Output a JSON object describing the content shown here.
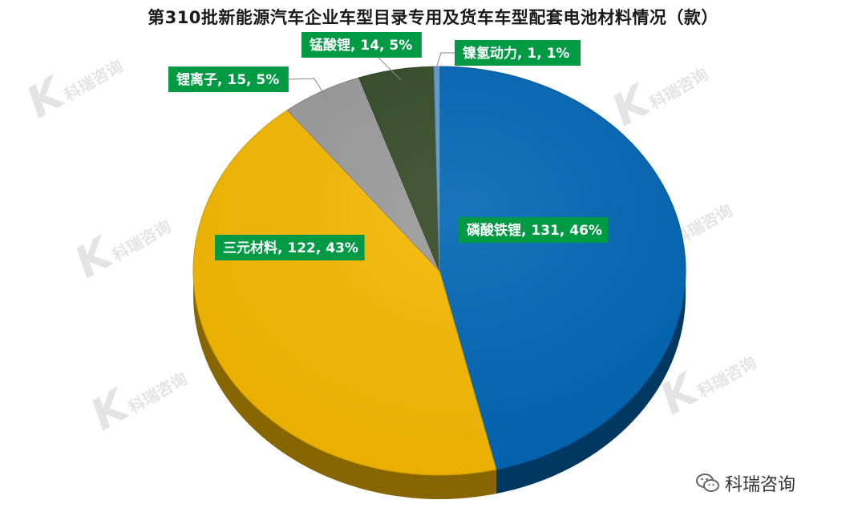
{
  "chart_data": {
    "type": "pie",
    "title": "第310批新能源汽车企业车型目录专用及货车车型配套电池材料情况（款）",
    "slices": [
      {
        "name": "磷酸铁锂",
        "value": 131,
        "percent": "46%",
        "label": "磷酸铁锂, 131, 46%",
        "color": "#0065b3"
      },
      {
        "name": "三元材料",
        "value": 122,
        "percent": "43%",
        "label": "三元材料, 122, 43%",
        "color": "#f5b800"
      },
      {
        "name": "锂离子",
        "value": 15,
        "percent": "5%",
        "label": "锂离子, 15, 5%",
        "color": "#9a9a9a"
      },
      {
        "name": "锰酸锂",
        "value": 14,
        "percent": "5%",
        "label": "锰酸锂, 14, 5%",
        "color": "#344a26"
      },
      {
        "name": "镍氢动力",
        "value": 1,
        "percent": "1%",
        "label": "镍氢动力, 1, 1%",
        "color": "#5b9bd5"
      }
    ],
    "label_style": {
      "background": "#009a44",
      "text": "#ffffff"
    }
  },
  "watermark": {
    "name": "科瑞咨询",
    "mark": "KR"
  },
  "footer": {
    "wechat_name": "科瑞咨询",
    "icon": "wechat-icon"
  }
}
